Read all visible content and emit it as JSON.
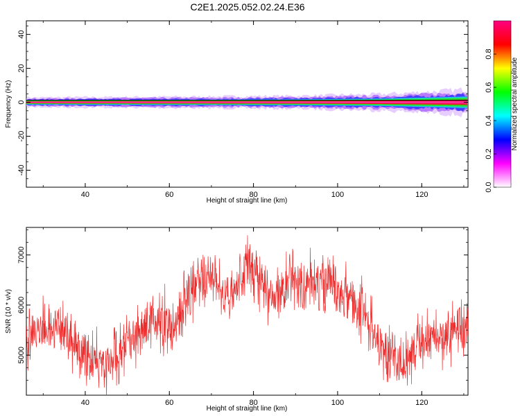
{
  "title": "C2E1.2025.052.02.24.E36",
  "chart_data": [
    {
      "type": "heatmap",
      "xlabel": "Height of straight line (km)",
      "ylabel": "Frequency (Hz)",
      "xlim": [
        26,
        131
      ],
      "ylim": [
        -50,
        48
      ],
      "x_ticks": [
        40,
        60,
        80,
        100,
        120
      ],
      "y_ticks": [
        -40,
        -20,
        0,
        20,
        40
      ],
      "colorbar": {
        "label": "Normalized spectral amplitude",
        "range": [
          0,
          1
        ],
        "ticks": [
          0.0,
          0.2,
          0.4,
          0.6,
          0.8
        ],
        "colors": [
          "#ffffff",
          "#ff00ff",
          "#0000ff",
          "#00ffff",
          "#00ff00",
          "#ffff00",
          "#ff0000",
          "#ff0080"
        ]
      },
      "band_center_hz": 0,
      "band_halfwidth_hz": [
        {
          "x": 26,
          "value": 1.5
        },
        {
          "x": 70,
          "value": 1.8
        },
        {
          "x": 90,
          "value": 2.0
        },
        {
          "x": 110,
          "value": 2.5
        },
        {
          "x": 125,
          "value": 3.5
        },
        {
          "x": 131,
          "value": 4.0
        }
      ]
    },
    {
      "type": "line",
      "xlabel": "Height of straight line (km)",
      "ylabel": "SNR (10 * v/v)",
      "xlim": [
        26,
        131
      ],
      "ylim": [
        4200,
        7550
      ],
      "x_ticks": [
        40,
        60,
        80,
        100,
        120
      ],
      "y_ticks": [
        5000,
        6000,
        7000
      ],
      "series": [
        {
          "color": "#ee2b2b",
          "trend": [
            {
              "x": 26,
              "y": 5250
            },
            {
              "x": 30,
              "y": 5550
            },
            {
              "x": 34,
              "y": 5500
            },
            {
              "x": 37,
              "y": 5250
            },
            {
              "x": 40,
              "y": 5000
            },
            {
              "x": 43,
              "y": 4900
            },
            {
              "x": 45,
              "y": 4750
            },
            {
              "x": 48,
              "y": 5100
            },
            {
              "x": 52,
              "y": 5350
            },
            {
              "x": 55,
              "y": 5600
            },
            {
              "x": 58,
              "y": 5700
            },
            {
              "x": 61,
              "y": 5500
            },
            {
              "x": 64,
              "y": 6100
            },
            {
              "x": 67,
              "y": 6450
            },
            {
              "x": 70,
              "y": 6550
            },
            {
              "x": 73,
              "y": 6250
            },
            {
              "x": 76,
              "y": 6350
            },
            {
              "x": 79,
              "y": 6800
            },
            {
              "x": 82,
              "y": 6500
            },
            {
              "x": 85,
              "y": 6050
            },
            {
              "x": 88,
              "y": 6500
            },
            {
              "x": 92,
              "y": 6450
            },
            {
              "x": 96,
              "y": 6400
            },
            {
              "x": 100,
              "y": 6300
            },
            {
              "x": 104,
              "y": 6050
            },
            {
              "x": 107,
              "y": 5750
            },
            {
              "x": 110,
              "y": 5150
            },
            {
              "x": 113,
              "y": 4950
            },
            {
              "x": 116,
              "y": 4800
            },
            {
              "x": 119,
              "y": 5250
            },
            {
              "x": 122,
              "y": 5350
            },
            {
              "x": 126,
              "y": 5450
            },
            {
              "x": 131,
              "y": 5450
            }
          ],
          "noise_amplitude": 350
        }
      ]
    }
  ]
}
